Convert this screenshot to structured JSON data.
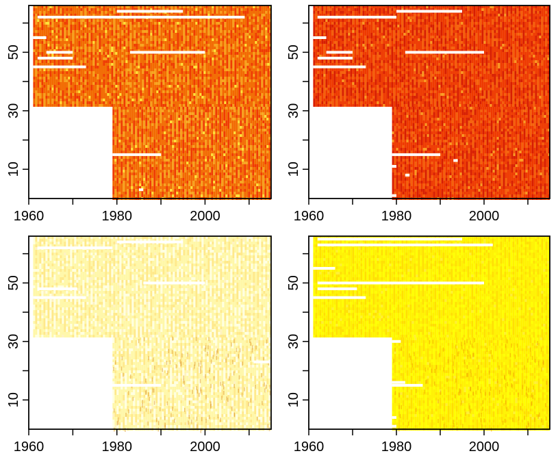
{
  "figure": {
    "layout": "2x2 grid of heatmap panels",
    "palette": "heat (red → orange → yellow → white)"
  },
  "chart_data": [
    {
      "type": "heatmap",
      "panel": "top-left",
      "title": "",
      "xlabel": "",
      "ylabel": "",
      "xlim": [
        1960,
        2015
      ],
      "ylim": [
        0,
        66
      ],
      "xticks": [
        1960,
        1970,
        1980,
        1990,
        2000,
        2010
      ],
      "xtick_labels": [
        "1960",
        "1980",
        "2000"
      ],
      "yticks": [
        10,
        20,
        30,
        40,
        50,
        60
      ],
      "ytick_labels": [
        "10",
        "30",
        "50"
      ],
      "data_start_year": 1961,
      "early_start_rows_above": 32,
      "late_start_year": 1979,
      "dominant_colors": [
        "#ef3b00",
        "#f26a00",
        "#f7a21b",
        "#ffe135"
      ],
      "missing_segments": [
        {
          "row": 64,
          "from": 1980,
          "to": 1995
        },
        {
          "row": 62,
          "from": 1962,
          "to": 2009
        },
        {
          "row": 55,
          "from": 1961,
          "to": 1964
        },
        {
          "row": 50,
          "from": 1964,
          "to": 1970
        },
        {
          "row": 50,
          "from": 1983,
          "to": 2000
        },
        {
          "row": 48,
          "from": 1962,
          "to": 1970
        },
        {
          "row": 45,
          "from": 1961,
          "to": 1973
        },
        {
          "row": 15,
          "from": 1979,
          "to": 1990
        },
        {
          "row": 3,
          "from": 1985,
          "to": 1986
        }
      ]
    },
    {
      "type": "heatmap",
      "panel": "top-right",
      "title": "",
      "xlabel": "",
      "ylabel": "",
      "xlim": [
        1960,
        2015
      ],
      "ylim": [
        0,
        66
      ],
      "xticks": [
        1960,
        1970,
        1980,
        1990,
        2000,
        2010
      ],
      "xtick_labels": [
        "1960",
        "1980",
        "2000"
      ],
      "yticks": [
        10,
        20,
        30,
        40,
        50,
        60
      ],
      "ytick_labels": [
        "10",
        "30",
        "50"
      ],
      "data_start_year": 1961,
      "early_start_rows_above": 32,
      "late_start_year": 1979,
      "dominant_colors": [
        "#d81e00",
        "#ee3a00",
        "#f5600a",
        "#f99a20"
      ],
      "missing_segments": [
        {
          "row": 64,
          "from": 1980,
          "to": 1995
        },
        {
          "row": 62,
          "from": 1962,
          "to": 1980
        },
        {
          "row": 55,
          "from": 1961,
          "to": 1964
        },
        {
          "row": 50,
          "from": 1964,
          "to": 1970
        },
        {
          "row": 50,
          "from": 1982,
          "to": 2000
        },
        {
          "row": 48,
          "from": 1962,
          "to": 1970
        },
        {
          "row": 45,
          "from": 1961,
          "to": 1973
        },
        {
          "row": 15,
          "from": 1979,
          "to": 1990
        },
        {
          "row": 13,
          "from": 1993,
          "to": 1994
        },
        {
          "row": 11,
          "from": 1979,
          "to": 1980
        },
        {
          "row": 8,
          "from": 1982,
          "to": 1983
        },
        {
          "row": 1,
          "from": 1979,
          "to": 1980
        }
      ]
    },
    {
      "type": "heatmap",
      "panel": "bottom-left",
      "title": "",
      "xlabel": "",
      "ylabel": "",
      "xlim": [
        1960,
        2015
      ],
      "ylim": [
        0,
        66
      ],
      "xticks": [
        1960,
        1970,
        1980,
        1990,
        2000,
        2010
      ],
      "xtick_labels": [
        "1960",
        "1980",
        "2000"
      ],
      "yticks": [
        10,
        20,
        30,
        40,
        50,
        60
      ],
      "ytick_labels": [
        "10",
        "30",
        "50"
      ],
      "data_start_year": 1961,
      "early_start_rows_above": 32,
      "late_start_year": 1979,
      "dominant_colors": [
        "#ffffe0",
        "#fff7a8",
        "#ffe98a",
        "#fff2c0"
      ],
      "missing_segments": [
        {
          "row": 64,
          "from": 1980,
          "to": 1995
        },
        {
          "row": 62,
          "from": 1962,
          "to": 1979
        },
        {
          "row": 50,
          "from": 1986,
          "to": 2000
        },
        {
          "row": 48,
          "from": 1962,
          "to": 1971
        },
        {
          "row": 45,
          "from": 1961,
          "to": 1973
        },
        {
          "row": 23,
          "from": 2011,
          "to": 2015
        },
        {
          "row": 15,
          "from": 1979,
          "to": 1990
        }
      ]
    },
    {
      "type": "heatmap",
      "panel": "bottom-right",
      "title": "",
      "xlabel": "",
      "ylabel": "",
      "xlim": [
        1960,
        2015
      ],
      "ylim": [
        0,
        66
      ],
      "xticks": [
        1960,
        1970,
        1980,
        1990,
        2000,
        2010
      ],
      "xtick_labels": [
        "1960",
        "1980",
        "2000"
      ],
      "yticks": [
        10,
        20,
        30,
        40,
        50,
        60
      ],
      "ytick_labels": [
        "10",
        "30",
        "50"
      ],
      "data_start_year": 1961,
      "early_start_rows_above": 32,
      "late_start_year": 1979,
      "dominant_colors": [
        "#ffff00",
        "#fff200",
        "#ffe000",
        "#ffef30"
      ],
      "missing_segments": [
        {
          "row": 65,
          "from": 1962,
          "to": 1995
        },
        {
          "row": 63,
          "from": 1962,
          "to": 2002
        },
        {
          "row": 55,
          "from": 1961,
          "to": 1966
        },
        {
          "row": 50,
          "from": 1962,
          "to": 2000
        },
        {
          "row": 48,
          "from": 1962,
          "to": 1971
        },
        {
          "row": 45,
          "from": 1961,
          "to": 1973
        },
        {
          "row": 30,
          "from": 1979,
          "to": 1981
        },
        {
          "row": 16,
          "from": 1979,
          "to": 1982
        },
        {
          "row": 15,
          "from": 1979,
          "to": 1986
        },
        {
          "row": 4,
          "from": 1979,
          "to": 1980
        },
        {
          "row": 1,
          "from": 1979,
          "to": 1980
        }
      ]
    }
  ]
}
